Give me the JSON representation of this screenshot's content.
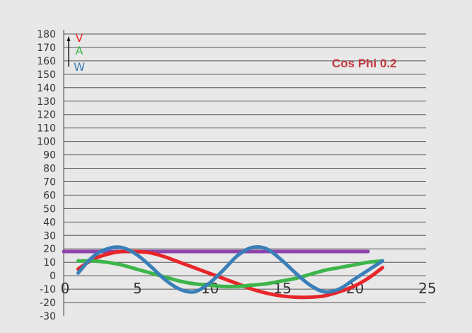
{
  "chart_data": {
    "type": "line",
    "title": "",
    "annotation": "Cos Phi 0.2",
    "legend": [
      {
        "label": "V",
        "color": "#e8262a"
      },
      {
        "label": "A",
        "color": "#3db54a"
      },
      {
        "label": "W",
        "color": "#3a7fb8"
      }
    ],
    "xlim": [
      0,
      25
    ],
    "ylim": [
      -30,
      180
    ],
    "x_ticks": [
      "0",
      "5",
      "10",
      "15",
      "20",
      "25"
    ],
    "y_ticks": [
      "180",
      "170",
      "160",
      "150",
      "140",
      "130",
      "120",
      "110",
      "100",
      "90",
      "80",
      "70",
      "60",
      "50",
      "40",
      "30",
      "20",
      "10",
      "0",
      "-10",
      "-20",
      "-30"
    ],
    "grid": "horizontal",
    "series": [
      {
        "name": "V",
        "color": "#e8262a",
        "x": [
          1,
          2,
          3,
          4,
          5,
          6,
          7,
          8,
          9,
          10,
          11,
          12,
          13,
          14,
          15,
          16,
          17,
          18,
          19,
          20,
          21,
          22
        ],
        "y": [
          5,
          12,
          16,
          18,
          18,
          17,
          14,
          10,
          6,
          2,
          -2,
          -6,
          -10,
          -13,
          -15,
          -16,
          -16,
          -15,
          -12,
          -8,
          -2,
          6
        ]
      },
      {
        "name": "A",
        "color": "#3db54a",
        "x": [
          1,
          2,
          3,
          4,
          5,
          6,
          7,
          8,
          9,
          10,
          11,
          12,
          13,
          14,
          15,
          16,
          17,
          18,
          19,
          20,
          21,
          22
        ],
        "y": [
          11,
          11,
          10,
          8,
          5,
          2,
          -1,
          -4,
          -6,
          -7,
          -8,
          -8,
          -7,
          -6,
          -4,
          -2,
          1,
          4,
          6,
          8,
          10,
          11
        ]
      },
      {
        "name": "W",
        "color": "#3a7fb8",
        "x": [
          1,
          2,
          3,
          4,
          5,
          6,
          7,
          8,
          9,
          10,
          11,
          12,
          13,
          14,
          15,
          16,
          17,
          18,
          19,
          20,
          21,
          22
        ],
        "y": [
          2,
          14,
          20,
          21,
          16,
          7,
          -3,
          -10,
          -12,
          -6,
          4,
          15,
          21,
          20,
          12,
          2,
          -7,
          -12,
          -10,
          -3,
          4,
          11
        ]
      },
      {
        "name": "",
        "color": "#8e44ad",
        "x": [
          0,
          21
        ],
        "y": [
          18,
          18
        ]
      }
    ]
  }
}
